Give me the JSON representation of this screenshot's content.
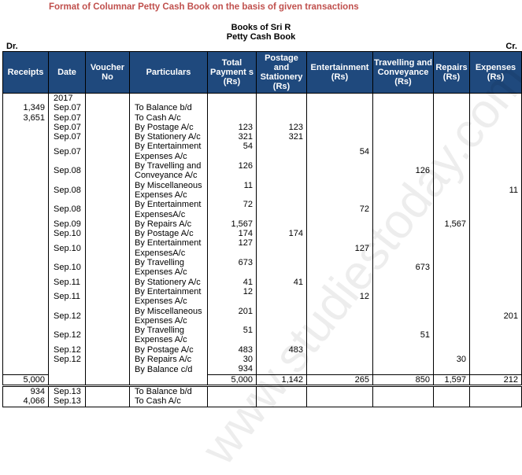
{
  "title": "Format of Columnar Petty Cash Book on the basis of given transactions",
  "book_heading": "Books of Sri R",
  "book_subheading": "Petty Cash Book",
  "dr_label": "Dr.",
  "cr_label": "Cr.",
  "watermark": "www.studiestoday.com",
  "colors": {
    "header_bg": "#1f497d",
    "title": "#c0504d"
  },
  "columns": [
    "Receipts",
    "Date",
    "Voucher No",
    "Particulars",
    "Total Payment s (Rs)",
    "Postage and Stationery (Rs)",
    "Entertainment (Rs)",
    "Travelling and Conveyance (Rs)",
    "Repairs (Rs)",
    "Expenses (Rs)"
  ],
  "rows": [
    {
      "receipts": "",
      "date": "2017",
      "voucher": "",
      "particulars": "",
      "total": "",
      "postage": "",
      "ent": "",
      "travel": "",
      "repairs": "",
      "exp": ""
    },
    {
      "receipts": "1,349",
      "date": "Sep.07",
      "particulars": "To Balance b/d"
    },
    {
      "receipts": "3,651",
      "date": "Sep.07",
      "particulars": "To Cash A/c"
    },
    {
      "date": "Sep.07",
      "particulars": "By Postage A/c",
      "total": "123",
      "postage": "123"
    },
    {
      "date": "Sep.07",
      "particulars": "By Stationery A/c",
      "total": "321",
      "postage": "321"
    },
    {
      "date": "Sep.07",
      "particulars": "By Entertainment Expenses A/c",
      "total": "54",
      "ent": "54",
      "double": true
    },
    {
      "date": "Sep.08",
      "particulars": "By Travelling and Conveyance A/c",
      "total": "126",
      "travel": "126",
      "double": true
    },
    {
      "date": "Sep.08",
      "particulars": "By Miscellaneous Expenses A/c",
      "total": "11",
      "exp": "11",
      "double": true
    },
    {
      "date": "Sep.08",
      "particulars": "By Entertainment ExpensesA/c",
      "total": "72",
      "ent": "72",
      "double": true
    },
    {
      "date": "Sep.09",
      "particulars": "By Repairs A/c",
      "total": "1,567",
      "repairs": "1,567"
    },
    {
      "date": "Sep.10",
      "particulars": "By Postage A/c",
      "total": "174",
      "postage": "174"
    },
    {
      "date": "Sep.10",
      "particulars": "By Entertainment ExpensesA/c",
      "total": "127",
      "ent": "127",
      "double": true
    },
    {
      "date": "Sep.10",
      "particulars": "By Travelling Expenses A/c",
      "total": "673",
      "travel": "673",
      "double": true
    },
    {
      "date": "Sep.11",
      "particulars": "By Stationery A/c",
      "total": "41",
      "postage": "41"
    },
    {
      "date": "Sep.11",
      "particulars": "By Entertainment Expenses A/c",
      "total": "12",
      "ent": "12",
      "double": true
    },
    {
      "date": "Sep.12",
      "particulars": "By Miscellaneous Expenses A/c",
      "total": "201",
      "exp": "201",
      "double": true
    },
    {
      "date": "Sep.12",
      "particulars": "By Travelling Expenses A/c",
      "total": "51",
      "travel": "51",
      "double": true
    },
    {
      "date": "Sep.12",
      "particulars": "By Postage A/c",
      "total": "483",
      "postage": "483"
    },
    {
      "date": "Sep.12",
      "particulars": "By Repairs A/c",
      "total": "30",
      "repairs": "30"
    },
    {
      "particulars": "By Balance c/d",
      "total": "934"
    }
  ],
  "totals": {
    "receipts": "5,000",
    "total": "5,000",
    "postage": "1,142",
    "ent": "265",
    "travel": "850",
    "repairs": "1,597",
    "exp": "212"
  },
  "after_rows": [
    {
      "receipts": "934",
      "date": "Sep.13",
      "particulars": "To Balance b/d"
    },
    {
      "receipts": "4,066",
      "date": "Sep.13",
      "particulars": "To Cash A/c"
    }
  ]
}
